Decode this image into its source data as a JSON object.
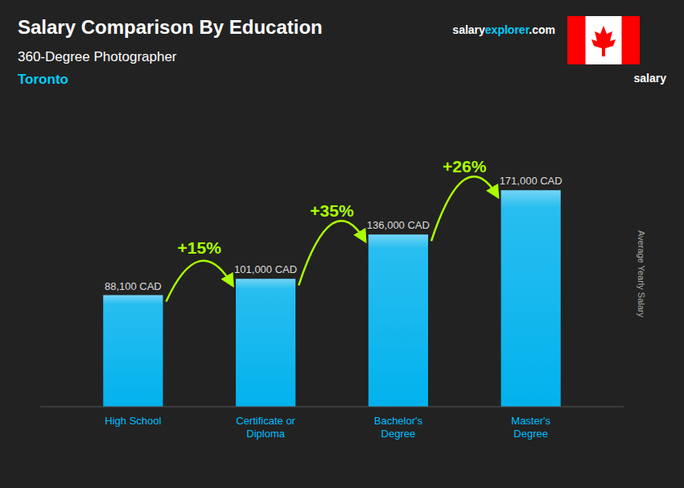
{
  "chart_data": {
    "type": "bar",
    "title": "Salary Comparison By Education",
    "subtitle": [
      "360-Degree Photographer",
      "Toronto"
    ],
    "categories": [
      "High School",
      "Certificate or\nDiploma",
      "Bachelor's\nDegree",
      "Master's\nDegree"
    ],
    "values": [
      88100,
      101000,
      136000,
      171000
    ],
    "value_labels": [
      "88,100 CAD",
      "101,000 CAD",
      "136,000 CAD",
      "171,000 CAD"
    ],
    "data_labels": true,
    "annotations": [
      "+15%",
      "+35%",
      "+26%"
    ],
    "ylabel": "Average Yearly Salary",
    "color": "#00BFFF",
    "ylim": [
      0,
      210000
    ],
    "tick_labels": "x",
    "grid": false,
    "logo": [
      "salary",
      "explorer",
      ".com"
    ],
    "header_text": "salary"
  }
}
